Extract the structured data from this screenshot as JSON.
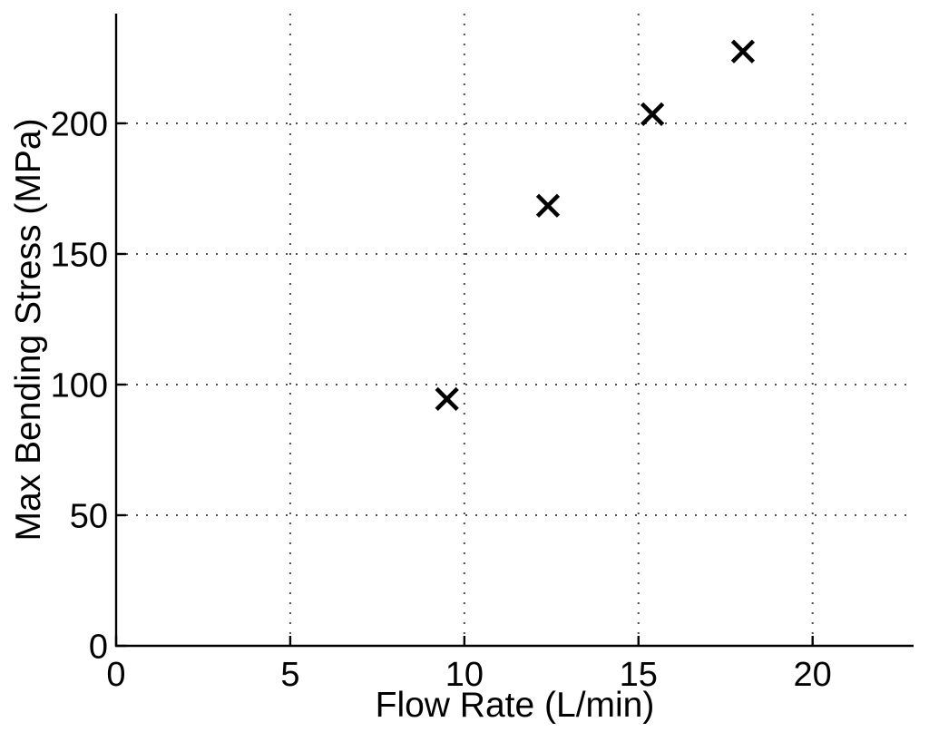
{
  "figure": {
    "background": "#ffffff"
  },
  "chart_data": {
    "type": "scatter",
    "title": "",
    "xlabel": "Flow Rate (L/min)",
    "ylabel": "Max Bending Stress (MPa)",
    "x": [
      9.5,
      12.4,
      15.4,
      18.0
    ],
    "y": [
      94.5,
      168.5,
      203.5,
      227.5
    ],
    "xticks": [
      0,
      5,
      10,
      15,
      20
    ],
    "yticks": [
      0,
      50,
      100,
      150,
      200
    ],
    "xtick_labels": [
      "0",
      "5",
      "10",
      "15",
      "20"
    ],
    "ytick_labels": [
      "0",
      "50",
      "100",
      "150",
      "200"
    ],
    "xlim": [
      0,
      22.9
    ],
    "ylim": [
      0,
      242
    ],
    "grid": true,
    "grid_style": "dotted",
    "legend": null,
    "marker": "x",
    "marker_color": "#000000",
    "axis_color": "#000000",
    "grid_color": "#4d4d4d",
    "text_color": "#000000"
  }
}
